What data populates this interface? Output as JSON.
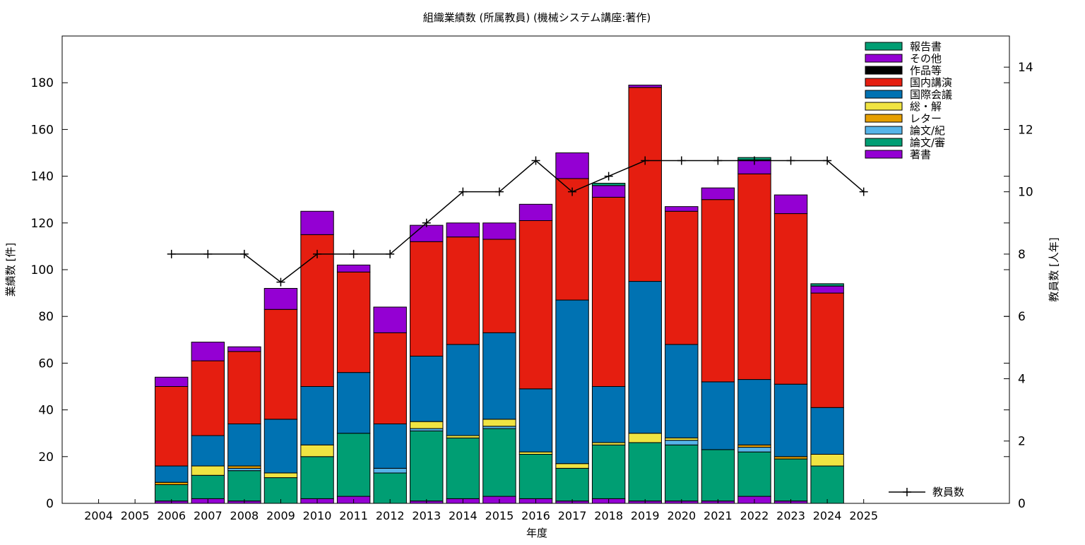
{
  "chart_data": {
    "type": "bar",
    "stacked": true,
    "title": "組織業績数 (所属教員) (機械システム講座:著作)",
    "xlabel": "年度",
    "ylabel": "業績数 [件]",
    "y2label": "教員数 [人年]",
    "categories": [
      "2004",
      "2005",
      "2006",
      "2007",
      "2008",
      "2009",
      "2010",
      "2011",
      "2012",
      "2013",
      "2014",
      "2015",
      "2016",
      "2017",
      "2018",
      "2019",
      "2020",
      "2021",
      "2022",
      "2023",
      "2024",
      "2025"
    ],
    "ylim": [
      0,
      200
    ],
    "yticks": [
      0,
      20,
      40,
      60,
      80,
      100,
      120,
      140,
      160,
      180
    ],
    "y2lim": [
      0,
      15
    ],
    "y2ticks": [
      0,
      2,
      4,
      6,
      8,
      10,
      12,
      14
    ],
    "grid": false,
    "legend_position": "top-right",
    "series": [
      {
        "name": "著書",
        "color": "#9400d3",
        "values": [
          0,
          0,
          1,
          2,
          1,
          0,
          2,
          3,
          0,
          1,
          2,
          3,
          2,
          1,
          2,
          1,
          1,
          1,
          3,
          1,
          0,
          0
        ]
      },
      {
        "name": "論文/審",
        "color": "#009e73",
        "values": [
          0,
          0,
          7,
          10,
          13,
          11,
          18,
          27,
          13,
          30,
          26,
          29,
          19,
          14,
          23,
          25,
          24,
          22,
          19,
          18,
          16,
          0
        ]
      },
      {
        "name": "論文/紀",
        "color": "#56b4e9",
        "values": [
          0,
          0,
          0,
          0,
          1,
          0,
          0,
          0,
          2,
          1,
          0,
          1,
          0,
          0,
          0,
          0,
          2,
          0,
          2,
          0,
          0,
          0
        ]
      },
      {
        "name": "レター",
        "color": "#e69f00",
        "values": [
          0,
          0,
          1,
          0,
          1,
          0,
          0,
          0,
          0,
          0,
          0,
          0,
          0,
          0,
          0,
          0,
          0,
          0,
          1,
          1,
          0,
          0
        ]
      },
      {
        "name": "総・解",
        "color": "#f0e442",
        "values": [
          0,
          0,
          0,
          4,
          0,
          2,
          5,
          0,
          0,
          3,
          1,
          3,
          1,
          2,
          1,
          4,
          1,
          0,
          0,
          0,
          5,
          0
        ]
      },
      {
        "name": "国際会議",
        "color": "#0072b2",
        "values": [
          0,
          0,
          7,
          13,
          18,
          23,
          25,
          26,
          19,
          28,
          39,
          37,
          27,
          70,
          24,
          65,
          40,
          29,
          28,
          31,
          20,
          0
        ]
      },
      {
        "name": "国内講演",
        "color": "#e51e10",
        "values": [
          0,
          0,
          34,
          32,
          31,
          47,
          65,
          43,
          39,
          49,
          46,
          40,
          72,
          52,
          81,
          83,
          57,
          78,
          88,
          73,
          49,
          0
        ]
      },
      {
        "name": "作品等",
        "color": "#000000",
        "values": [
          0,
          0,
          0,
          0,
          0,
          0,
          0,
          0,
          0,
          0,
          0,
          0,
          0,
          0,
          0,
          0,
          0,
          0,
          0,
          0,
          0,
          0
        ]
      },
      {
        "name": "その他",
        "color": "#9400d3",
        "values": [
          0,
          0,
          4,
          8,
          2,
          9,
          10,
          3,
          11,
          7,
          6,
          7,
          7,
          11,
          5,
          1,
          2,
          5,
          6,
          8,
          3,
          0
        ]
      },
      {
        "name": "報告書",
        "color": "#009e73",
        "values": [
          0,
          0,
          0,
          0,
          0,
          0,
          0,
          0,
          0,
          0,
          0,
          0,
          0,
          0,
          1,
          0,
          0,
          0,
          1,
          0,
          1,
          0
        ]
      }
    ],
    "overlay_line": {
      "name": "教員数",
      "axis": "y2",
      "color": "#000000",
      "values": [
        null,
        null,
        8,
        8,
        8,
        7.1,
        8,
        8,
        8,
        9,
        10,
        10,
        11,
        10,
        10.5,
        11,
        11,
        11,
        11,
        11,
        11,
        10
      ]
    }
  }
}
